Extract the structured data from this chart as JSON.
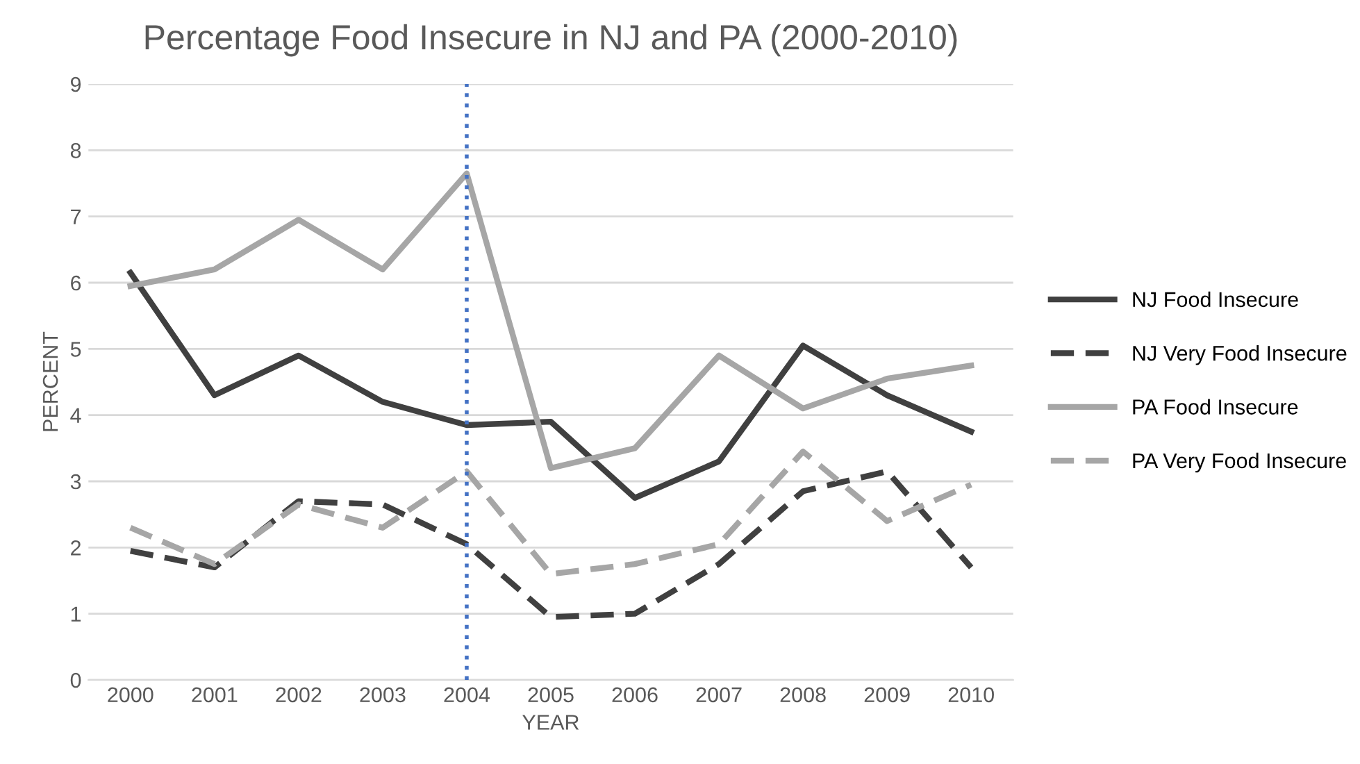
{
  "chart_data": {
    "type": "line",
    "title": "Percentage Food Insecure in NJ and PA (2000-2010)",
    "xlabel": "YEAR",
    "ylabel": "PERCENT",
    "categories": [
      "2000",
      "2001",
      "2002",
      "2003",
      "2004",
      "2005",
      "2006",
      "2007",
      "2008",
      "2009",
      "2010"
    ],
    "series": [
      {
        "name": "NJ Food Insecure",
        "color": "#404040",
        "line_style": "solid",
        "values": [
          6.15,
          4.3,
          4.9,
          4.2,
          3.85,
          3.9,
          2.75,
          3.3,
          5.05,
          4.3,
          3.75
        ]
      },
      {
        "name": "NJ Very Food Insecure",
        "color": "#404040",
        "line_style": "dashed",
        "values": [
          1.95,
          1.7,
          2.7,
          2.65,
          2.05,
          0.95,
          1.0,
          1.75,
          2.85,
          3.15,
          1.7
        ]
      },
      {
        "name": "PA Food Insecure",
        "color": "#a6a6a6",
        "line_style": "solid",
        "values": [
          5.95,
          6.2,
          6.95,
          6.2,
          7.65,
          3.2,
          3.5,
          4.9,
          4.1,
          4.55,
          4.75
        ]
      },
      {
        "name": "PA Very Food Insecure",
        "color": "#a6a6a6",
        "line_style": "dashed",
        "values": [
          2.3,
          1.75,
          2.65,
          2.3,
          3.15,
          1.6,
          1.75,
          2.05,
          3.45,
          2.4,
          2.95
        ]
      }
    ],
    "ylim": [
      0,
      9
    ],
    "yticks": [
      0,
      1,
      2,
      3,
      4,
      5,
      6,
      7,
      8,
      9
    ],
    "grid": "y",
    "legend": "right",
    "marker": "none",
    "ref_lines": [
      {
        "axis": "x",
        "value": "2004",
        "color": "#4472c4",
        "line_style": "dotted"
      }
    ]
  }
}
